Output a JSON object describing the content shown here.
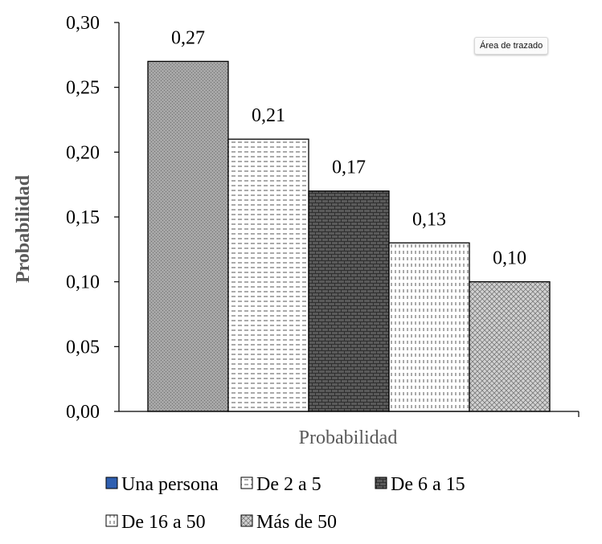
{
  "tooltip": "Área de trazado",
  "chart_data": {
    "type": "bar",
    "categories": [
      "Una persona",
      "De 2 a 5",
      "De 6 a 15",
      "De 16 a 50",
      "Más de 50"
    ],
    "values": [
      0.27,
      0.21,
      0.17,
      0.13,
      0.1
    ],
    "data_labels": [
      "0,27",
      "0,21",
      "0,17",
      "0,13",
      "0,10"
    ],
    "ylim": [
      0,
      0.3
    ],
    "yticks": [
      "0,00",
      "0,05",
      "0,10",
      "0,15",
      "0,20",
      "0,25",
      "0,30"
    ],
    "ylabel": "Probabilidad",
    "xlabel": "Probabilidad",
    "grid": false,
    "legend_position": "bottom",
    "legend": [
      "Una persona",
      "De 2 a 5",
      "De 6 a 15",
      "De 16 a 50",
      "Más de 50"
    ],
    "fill_colors": [
      "#a8a8a8",
      "#ffffff",
      "#5a5a5a",
      "#ffffff",
      "#d0d0d0"
    ],
    "legend_swatch_colors": [
      "#2f5fb0",
      "#ffffff",
      "#4a4a4a",
      "#ffffff",
      "#ffffff"
    ],
    "patterns": [
      "dots",
      "dashes",
      "bricks",
      "vertical-dashes",
      "crosshatch"
    ]
  }
}
